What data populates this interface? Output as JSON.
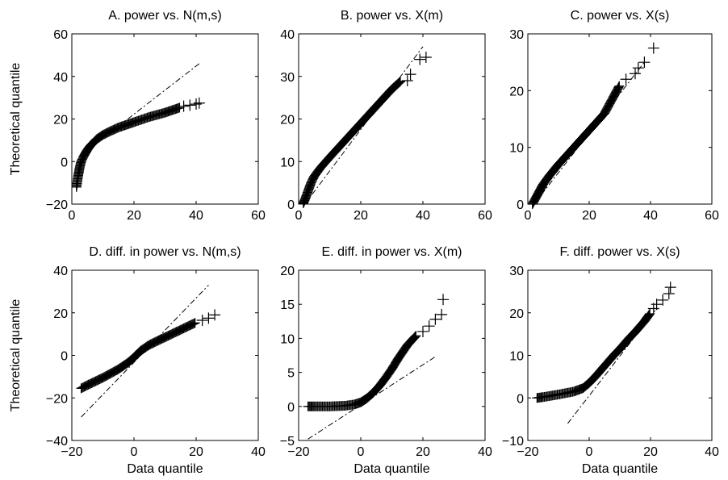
{
  "figure": {
    "xlabel": "Data quantile",
    "ylabel": "Theoretical quantile"
  },
  "chart_data": [
    {
      "type": "scatter",
      "id": "A",
      "title": "A. power vs. N(m,s)",
      "xlim": [
        0,
        60
      ],
      "ylim": [
        -20,
        60
      ],
      "xticks": [
        "0",
        "20",
        "40",
        "60"
      ],
      "yticks": [
        "−20",
        "0",
        "20",
        "40",
        "60"
      ],
      "xticks_v": [
        0,
        20,
        40,
        60
      ],
      "yticks_v": [
        -20,
        0,
        20,
        40,
        60
      ],
      "ylabel": "Theoretical quantile",
      "xlabel": "",
      "ref_line": {
        "x": [
          18,
          41
        ],
        "y": [
          20,
          46
        ]
      },
      "curve": {
        "x": [
          1.5,
          2,
          2.5,
          3,
          4,
          5,
          6,
          7,
          8,
          10,
          12,
          15,
          18,
          20,
          25,
          30,
          33,
          35
        ],
        "y": [
          -12,
          -7,
          -3,
          0,
          3,
          5.5,
          7.5,
          9,
          10.5,
          12.5,
          14,
          16,
          17.5,
          18.5,
          21,
          23,
          24.5,
          25.5
        ]
      },
      "outliers": {
        "x": [
          36,
          38,
          40,
          41
        ],
        "y": [
          26,
          26.5,
          27,
          27.5
        ]
      }
    },
    {
      "type": "scatter",
      "id": "B",
      "title": "B. power vs. X(m)",
      "xlim": [
        0,
        60
      ],
      "ylim": [
        0,
        40
      ],
      "xticks": [
        "0",
        "20",
        "40",
        "60"
      ],
      "yticks": [
        "0",
        "10",
        "20",
        "30",
        "40"
      ],
      "xticks_v": [
        0,
        20,
        40,
        60
      ],
      "yticks_v": [
        0,
        10,
        20,
        30,
        40
      ],
      "ylabel": "",
      "xlabel": "",
      "ref_line": {
        "x": [
          2,
          40
        ],
        "y": [
          0,
          37
        ]
      },
      "curve": {
        "x": [
          1.5,
          2,
          3,
          4,
          5,
          7,
          10,
          15,
          20,
          25,
          30,
          33
        ],
        "y": [
          0.2,
          1,
          3,
          5,
          6.5,
          8.5,
          11,
          15,
          19,
          23,
          27,
          29
        ]
      },
      "outliers": {
        "x": [
          35,
          36,
          39,
          41
        ],
        "y": [
          29,
          30.5,
          34,
          34.5
        ]
      }
    },
    {
      "type": "scatter",
      "id": "C",
      "title": "C. power vs. X(s)",
      "xlim": [
        0,
        60
      ],
      "ylim": [
        0,
        30
      ],
      "xticks": [
        "0",
        "20",
        "40",
        "60"
      ],
      "yticks": [
        "0",
        "10",
        "20",
        "30"
      ],
      "xticks_v": [
        0,
        20,
        40,
        60
      ],
      "yticks_v": [
        0,
        10,
        20,
        30
      ],
      "ylabel": "",
      "xlabel": "",
      "ref_line": {
        "x": [
          2,
          38
        ],
        "y": [
          0,
          25
        ]
      },
      "curve": {
        "x": [
          1.5,
          2,
          3,
          4,
          5,
          7,
          10,
          15,
          20,
          25,
          28,
          30
        ],
        "y": [
          0,
          0.5,
          1.5,
          2.5,
          3.5,
          5,
          7,
          10,
          13,
          16,
          19,
          21
        ]
      },
      "outliers": {
        "x": [
          32,
          35,
          36,
          38,
          41
        ],
        "y": [
          22,
          23,
          24,
          25,
          27.5
        ]
      }
    },
    {
      "type": "scatter",
      "id": "D",
      "title": "D. diff. in power vs. N(m,s)",
      "xlim": [
        -20,
        40
      ],
      "ylim": [
        -40,
        40
      ],
      "xticks": [
        "−20",
        "0",
        "20",
        "40"
      ],
      "yticks": [
        "−40",
        "−20",
        "0",
        "20",
        "40"
      ],
      "xticks_v": [
        -20,
        0,
        20,
        40
      ],
      "yticks_v": [
        -40,
        -20,
        0,
        20,
        40
      ],
      "ylabel": "Theoretical quantile",
      "xlabel": "Data quantile",
      "ref_line": {
        "x": [
          -17,
          24
        ],
        "y": [
          -29,
          33
        ]
      },
      "curve": {
        "x": [
          -17,
          -15,
          -10,
          -5,
          -2,
          0,
          2,
          5,
          10,
          15,
          20
        ],
        "y": [
          -15.5,
          -14,
          -10.5,
          -6.5,
          -3.5,
          -1,
          2,
          5,
          8.5,
          12,
          15.5
        ]
      },
      "outliers": {
        "x": [
          22,
          24,
          26
        ],
        "y": [
          16.5,
          17.5,
          19
        ]
      }
    },
    {
      "type": "scatter",
      "id": "E",
      "title": "E. diff. in power vs. X(m)",
      "xlim": [
        -20,
        40
      ],
      "ylim": [
        -5,
        20
      ],
      "xticks": [
        "−20",
        "0",
        "20",
        "40"
      ],
      "yticks": [
        "−5",
        "0",
        "5",
        "10",
        "15",
        "20"
      ],
      "xticks_v": [
        -20,
        0,
        20,
        40
      ],
      "yticks_v": [
        -5,
        0,
        5,
        10,
        15,
        20
      ],
      "ylabel": "",
      "xlabel": "Data quantile",
      "ref_line": {
        "x": [
          -17,
          24
        ],
        "y": [
          -4.8,
          7.3
        ]
      },
      "curve": {
        "x": [
          -17,
          -15,
          -10,
          -5,
          -2,
          0,
          2,
          4,
          6,
          8,
          10,
          12,
          15,
          18
        ],
        "y": [
          0,
          0,
          0,
          0.1,
          0.3,
          0.6,
          1.2,
          2,
          3,
          4.2,
          5.5,
          7,
          9,
          10.5
        ]
      },
      "outliers": {
        "x": [
          20,
          22,
          24,
          26,
          26.5
        ],
        "y": [
          11,
          11.8,
          12.8,
          13.5,
          15.7
        ]
      }
    },
    {
      "type": "scatter",
      "id": "F",
      "title": "F. diff. power vs. X(s)",
      "xlim": [
        -20,
        40
      ],
      "ylim": [
        -10,
        30
      ],
      "xticks": [
        "−20",
        "0",
        "20",
        "40"
      ],
      "yticks": [
        "−10",
        "0",
        "10",
        "20",
        "30"
      ],
      "xticks_v": [
        -20,
        0,
        20,
        40
      ],
      "yticks_v": [
        -10,
        0,
        10,
        20,
        30
      ],
      "ylabel": "",
      "xlabel": "Data quantile",
      "ref_line": {
        "x": [
          -7,
          22
        ],
        "y": [
          -6,
          21
        ]
      },
      "curve": {
        "x": [
          -17,
          -15,
          -10,
          -5,
          -2,
          0,
          2,
          5,
          8,
          10,
          13,
          15,
          18,
          20
        ],
        "y": [
          0,
          0.2,
          0.8,
          1.5,
          2.3,
          3.5,
          5,
          7.5,
          10,
          11.5,
          14,
          15.5,
          18,
          20
        ]
      },
      "outliers": {
        "x": [
          21,
          22,
          24,
          26,
          26.5
        ],
        "y": [
          21,
          22,
          23,
          24.5,
          26
        ]
      }
    }
  ]
}
